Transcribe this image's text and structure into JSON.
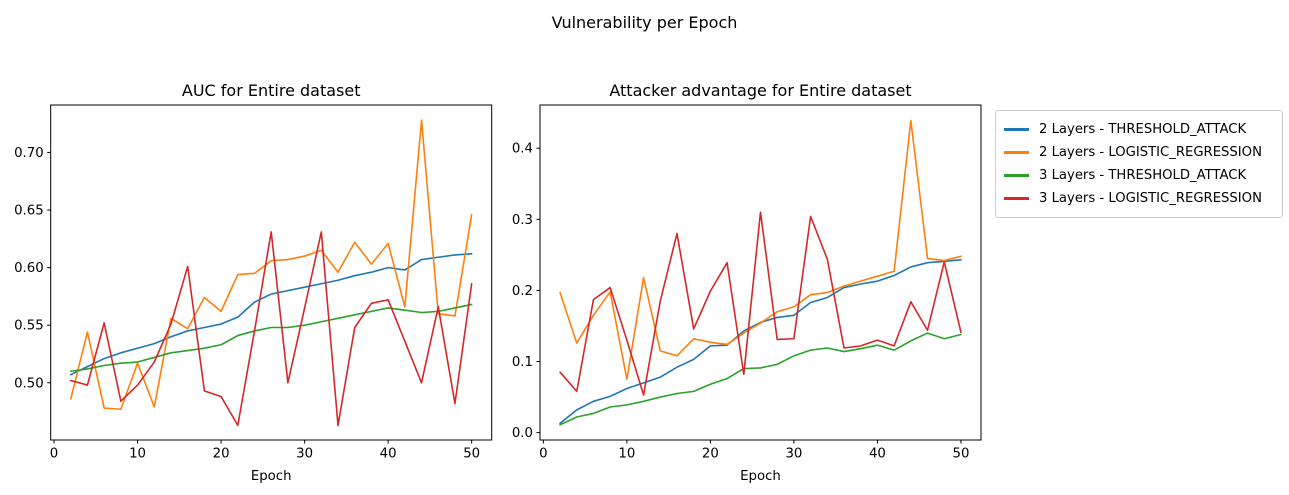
{
  "figure": {
    "suptitle": "Vulnerability per Epoch",
    "background_color": "#ffffff",
    "text_color": "#000000",
    "legend_border_color": "#cccccc"
  },
  "legend": {
    "entries": [
      {
        "label": "2 Layers - THRESHOLD_ATTACK",
        "color": "#1f77b4"
      },
      {
        "label": "2 Layers - LOGISTIC_REGRESSION",
        "color": "#ff7f0e"
      },
      {
        "label": "3 Layers - THRESHOLD_ATTACK",
        "color": "#2ca02c"
      },
      {
        "label": "3 Layers - LOGISTIC_REGRESSION",
        "color": "#d62728"
      }
    ]
  },
  "chart_data": [
    {
      "type": "line",
      "title": "AUC for Entire dataset",
      "xlabel": "Epoch",
      "grid": false,
      "legend_position": "outside-upper-right",
      "x": [
        2,
        4,
        6,
        8,
        10,
        12,
        14,
        16,
        18,
        20,
        22,
        24,
        26,
        28,
        30,
        32,
        34,
        36,
        38,
        40,
        42,
        44,
        46,
        48,
        50
      ],
      "xlim": [
        -0.4,
        52.4
      ],
      "ylim": [
        0.4503,
        0.7412
      ],
      "xticks": [
        {
          "label": "0",
          "value": 0
        },
        {
          "label": "10",
          "value": 10
        },
        {
          "label": "20",
          "value": 20
        },
        {
          "label": "30",
          "value": 30
        },
        {
          "label": "40",
          "value": 40
        },
        {
          "label": "50",
          "value": 50
        }
      ],
      "yticks": [
        {
          "label": "0.50",
          "value": 0.5
        },
        {
          "label": "0.55",
          "value": 0.55
        },
        {
          "label": "0.60",
          "value": 0.6
        },
        {
          "label": "0.65",
          "value": 0.65
        },
        {
          "label": "0.70",
          "value": 0.7
        }
      ],
      "series": [
        {
          "name": "2 Layers - THRESHOLD_ATTACK",
          "color": "#1f77b4",
          "values": [
            0.507,
            0.514,
            0.521,
            0.526,
            0.53,
            0.534,
            0.54,
            0.545,
            0.548,
            0.551,
            0.557,
            0.57,
            0.577,
            0.58,
            0.583,
            0.586,
            0.589,
            0.593,
            0.596,
            0.6,
            0.598,
            0.607,
            0.609,
            0.611,
            0.612
          ]
        },
        {
          "name": "2 Layers - LOGISTIC_REGRESSION",
          "color": "#ff7f0e",
          "values": [
            0.486,
            0.544,
            0.478,
            0.477,
            0.517,
            0.479,
            0.556,
            0.547,
            0.574,
            0.562,
            0.594,
            0.595,
            0.606,
            0.607,
            0.61,
            0.615,
            0.596,
            0.622,
            0.603,
            0.621,
            0.566,
            0.728,
            0.56,
            0.558,
            0.646
          ]
        },
        {
          "name": "3 Layers - THRESHOLD_ATTACK",
          "color": "#2ca02c",
          "values": [
            0.51,
            0.512,
            0.515,
            0.517,
            0.518,
            0.522,
            0.526,
            0.528,
            0.53,
            0.533,
            0.541,
            0.545,
            0.548,
            0.548,
            0.55,
            0.553,
            0.556,
            0.559,
            0.562,
            0.565,
            0.563,
            0.561,
            0.562,
            0.565,
            0.568
          ]
        },
        {
          "name": "3 Layers - LOGISTIC_REGRESSION",
          "color": "#d62728",
          "values": [
            0.502,
            0.498,
            0.552,
            0.484,
            0.498,
            0.518,
            0.551,
            0.601,
            0.493,
            0.488,
            0.463,
            0.545,
            0.631,
            0.5,
            0.565,
            0.631,
            0.463,
            0.548,
            0.569,
            0.572,
            0.536,
            0.5,
            0.566,
            0.482,
            0.586
          ]
        }
      ]
    },
    {
      "type": "line",
      "title": "Attacker advantage for Entire dataset",
      "xlabel": "Epoch",
      "grid": false,
      "x": [
        2,
        4,
        6,
        8,
        10,
        12,
        14,
        16,
        18,
        20,
        22,
        24,
        26,
        28,
        30,
        32,
        34,
        36,
        38,
        40,
        42,
        44,
        46,
        48,
        50
      ],
      "xlim": [
        -0.4,
        52.4
      ],
      "ylim": [
        -0.0104,
        0.4608
      ],
      "xticks": [
        {
          "label": "0",
          "value": 0
        },
        {
          "label": "10",
          "value": 10
        },
        {
          "label": "20",
          "value": 20
        },
        {
          "label": "30",
          "value": 30
        },
        {
          "label": "40",
          "value": 40
        },
        {
          "label": "50",
          "value": 50
        }
      ],
      "yticks": [
        {
          "label": "0.0",
          "value": 0.0
        },
        {
          "label": "0.1",
          "value": 0.1
        },
        {
          "label": "0.2",
          "value": 0.2
        },
        {
          "label": "0.3",
          "value": 0.3
        },
        {
          "label": "0.4",
          "value": 0.4
        }
      ],
      "series": [
        {
          "name": "2 Layers - THRESHOLD_ATTACK",
          "color": "#1f77b4",
          "values": [
            0.013,
            0.032,
            0.044,
            0.051,
            0.062,
            0.07,
            0.078,
            0.092,
            0.103,
            0.122,
            0.123,
            0.143,
            0.155,
            0.162,
            0.165,
            0.183,
            0.19,
            0.204,
            0.209,
            0.213,
            0.221,
            0.233,
            0.239,
            0.241,
            0.243
          ]
        },
        {
          "name": "2 Layers - LOGISTIC_REGRESSION",
          "color": "#ff7f0e",
          "values": [
            0.197,
            0.126,
            0.165,
            0.198,
            0.075,
            0.218,
            0.115,
            0.108,
            0.132,
            0.127,
            0.124,
            0.14,
            0.154,
            0.17,
            0.177,
            0.194,
            0.197,
            0.206,
            0.213,
            0.22,
            0.227,
            0.439,
            0.245,
            0.242,
            0.248
          ]
        },
        {
          "name": "3 Layers - THRESHOLD_ATTACK",
          "color": "#2ca02c",
          "values": [
            0.011,
            0.022,
            0.027,
            0.036,
            0.039,
            0.044,
            0.05,
            0.055,
            0.058,
            0.068,
            0.076,
            0.09,
            0.091,
            0.096,
            0.108,
            0.116,
            0.119,
            0.114,
            0.118,
            0.123,
            0.116,
            0.129,
            0.14,
            0.132,
            0.138
          ]
        },
        {
          "name": "3 Layers - LOGISTIC_REGRESSION",
          "color": "#d62728",
          "values": [
            0.085,
            0.058,
            0.187,
            0.204,
            0.13,
            0.053,
            0.185,
            0.28,
            0.146,
            0.199,
            0.239,
            0.082,
            0.31,
            0.131,
            0.132,
            0.304,
            0.244,
            0.119,
            0.122,
            0.13,
            0.122,
            0.184,
            0.144,
            0.24,
            0.141
          ]
        }
      ]
    }
  ]
}
